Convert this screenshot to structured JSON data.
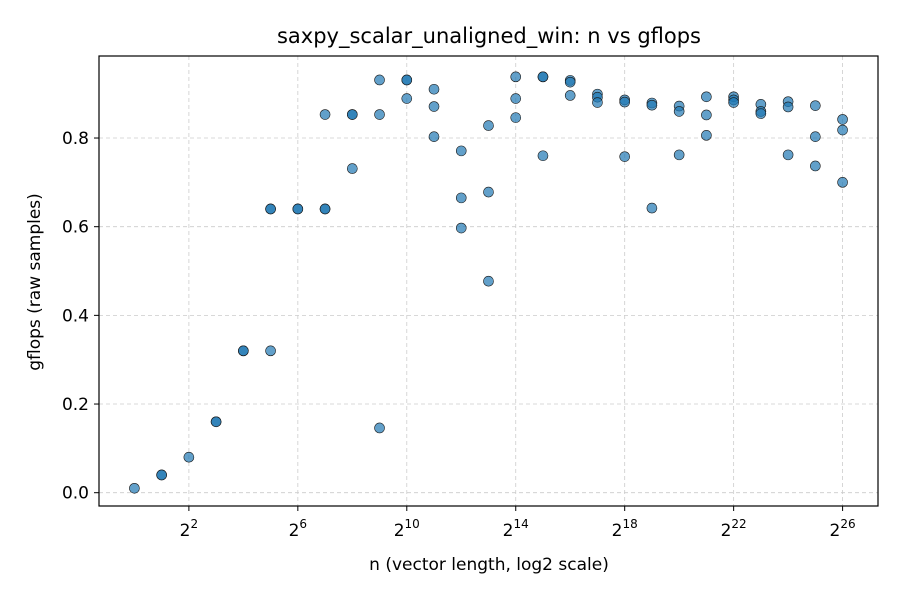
{
  "chart_data": {
    "type": "scatter",
    "title": "saxpy_scalar_unaligned_win: n vs gflops",
    "xlabel": "n (vector length, log2 scale)",
    "ylabel": "gflops (raw samples)",
    "xscale": "log2",
    "xlim_log2": [
      -1.3,
      27.3
    ],
    "ylim": [
      -0.03,
      0.985
    ],
    "xticks": [
      {
        "base": "2",
        "exp": "2",
        "value": 4
      },
      {
        "base": "2",
        "exp": "6",
        "value": 64
      },
      {
        "base": "2",
        "exp": "10",
        "value": 1024
      },
      {
        "base": "2",
        "exp": "14",
        "value": 16384
      },
      {
        "base": "2",
        "exp": "18",
        "value": 262144
      },
      {
        "base": "2",
        "exp": "22",
        "value": 4194304
      },
      {
        "base": "2",
        "exp": "26",
        "value": 67108864
      }
    ],
    "yticks": [
      {
        "label": "0.0",
        "value": 0.0
      },
      {
        "label": "0.2",
        "value": 0.2
      },
      {
        "label": "0.4",
        "value": 0.4
      },
      {
        "label": "0.6",
        "value": 0.6
      },
      {
        "label": "0.8",
        "value": 0.8
      }
    ],
    "grid": true,
    "marker_color": "#1f77b4",
    "points": [
      {
        "x": 1,
        "y": 0.01
      },
      {
        "x": 2,
        "y": 0.04
      },
      {
        "x": 2,
        "y": 0.04
      },
      {
        "x": 4,
        "y": 0.08
      },
      {
        "x": 8,
        "y": 0.16
      },
      {
        "x": 8,
        "y": 0.16
      },
      {
        "x": 16,
        "y": 0.32
      },
      {
        "x": 16,
        "y": 0.32
      },
      {
        "x": 32,
        "y": 0.64
      },
      {
        "x": 32,
        "y": 0.64
      },
      {
        "x": 32,
        "y": 0.32
      },
      {
        "x": 64,
        "y": 0.64
      },
      {
        "x": 64,
        "y": 0.64
      },
      {
        "x": 128,
        "y": 0.64
      },
      {
        "x": 128,
        "y": 0.64
      },
      {
        "x": 128,
        "y": 0.853
      },
      {
        "x": 256,
        "y": 0.853
      },
      {
        "x": 256,
        "y": 0.853
      },
      {
        "x": 256,
        "y": 0.731
      },
      {
        "x": 512,
        "y": 0.931
      },
      {
        "x": 512,
        "y": 0.853
      },
      {
        "x": 512,
        "y": 0.146
      },
      {
        "x": 1024,
        "y": 0.931
      },
      {
        "x": 1024,
        "y": 0.931
      },
      {
        "x": 1024,
        "y": 0.889
      },
      {
        "x": 2048,
        "y": 0.91
      },
      {
        "x": 2048,
        "y": 0.871
      },
      {
        "x": 2048,
        "y": 0.803
      },
      {
        "x": 4096,
        "y": 0.771
      },
      {
        "x": 4096,
        "y": 0.665
      },
      {
        "x": 4096,
        "y": 0.597
      },
      {
        "x": 8192,
        "y": 0.828
      },
      {
        "x": 8192,
        "y": 0.678
      },
      {
        "x": 8192,
        "y": 0.477
      },
      {
        "x": 16384,
        "y": 0.938
      },
      {
        "x": 16384,
        "y": 0.889
      },
      {
        "x": 16384,
        "y": 0.846
      },
      {
        "x": 32768,
        "y": 0.938
      },
      {
        "x": 32768,
        "y": 0.938
      },
      {
        "x": 32768,
        "y": 0.76
      },
      {
        "x": 65536,
        "y": 0.93
      },
      {
        "x": 65536,
        "y": 0.926
      },
      {
        "x": 65536,
        "y": 0.896
      },
      {
        "x": 131072,
        "y": 0.899
      },
      {
        "x": 131072,
        "y": 0.892
      },
      {
        "x": 131072,
        "y": 0.88
      },
      {
        "x": 262144,
        "y": 0.886
      },
      {
        "x": 262144,
        "y": 0.881
      },
      {
        "x": 262144,
        "y": 0.758
      },
      {
        "x": 524288,
        "y": 0.879
      },
      {
        "x": 524288,
        "y": 0.874
      },
      {
        "x": 524288,
        "y": 0.642
      },
      {
        "x": 1048576,
        "y": 0.872
      },
      {
        "x": 1048576,
        "y": 0.86
      },
      {
        "x": 1048576,
        "y": 0.762
      },
      {
        "x": 2097152,
        "y": 0.893
      },
      {
        "x": 2097152,
        "y": 0.852
      },
      {
        "x": 2097152,
        "y": 0.806
      },
      {
        "x": 4194304,
        "y": 0.893
      },
      {
        "x": 4194304,
        "y": 0.886
      },
      {
        "x": 4194304,
        "y": 0.88
      },
      {
        "x": 8388608,
        "y": 0.876
      },
      {
        "x": 8388608,
        "y": 0.86
      },
      {
        "x": 8388608,
        "y": 0.855
      },
      {
        "x": 16777216,
        "y": 0.882
      },
      {
        "x": 16777216,
        "y": 0.87
      },
      {
        "x": 16777216,
        "y": 0.762
      },
      {
        "x": 33554432,
        "y": 0.873
      },
      {
        "x": 33554432,
        "y": 0.803
      },
      {
        "x": 33554432,
        "y": 0.737
      },
      {
        "x": 67108864,
        "y": 0.842
      },
      {
        "x": 67108864,
        "y": 0.818
      },
      {
        "x": 67108864,
        "y": 0.7
      }
    ]
  }
}
